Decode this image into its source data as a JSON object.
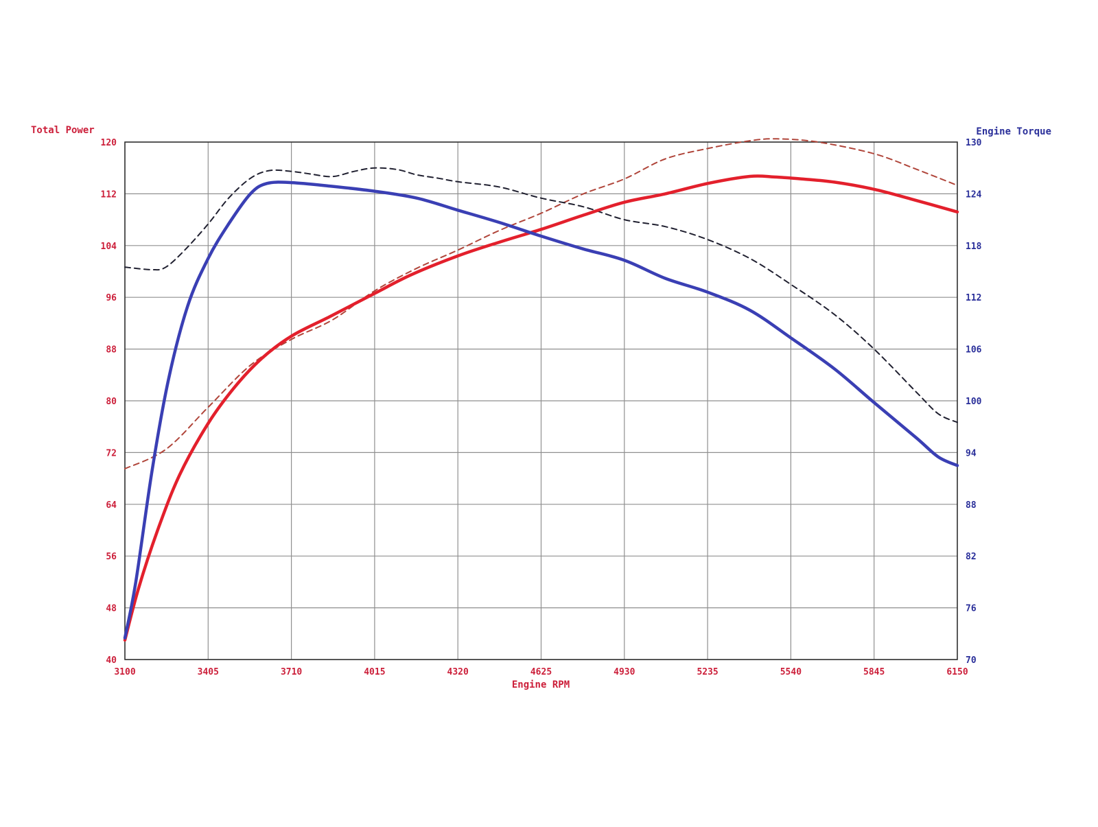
{
  "chart_data": {
    "type": "line",
    "title": "",
    "xlabel": "Engine RPM",
    "ylabel_left": "Total Power",
    "ylabel_right": "Engine Torque",
    "xlim": [
      3100,
      6150
    ],
    "ylim_left": [
      40,
      120
    ],
    "ylim_right": [
      70,
      130
    ],
    "x_ticks": [
      "3100",
      "3405",
      "3710",
      "4015",
      "4320",
      "4625",
      "4930",
      "5235",
      "5540",
      "5845",
      "6150"
    ],
    "y_left_ticks": [
      "40",
      "48",
      "56",
      "64",
      "72",
      "80",
      "88",
      "96",
      "104",
      "112",
      "120"
    ],
    "y_right_ticks": [
      "70",
      "76",
      "82",
      "88",
      "94",
      "100",
      "106",
      "112",
      "118",
      "124",
      "130"
    ],
    "grid": true,
    "legend": "none",
    "colors": {
      "power": "#e3202c",
      "power_dashed": "#b0453a",
      "torque": "#3a3fb4",
      "torque_dashed": "#202030",
      "left_axis": "#cc1f3a",
      "right_axis": "#2a2f9a",
      "x_axis": "#cc1f3a"
    },
    "series": [
      {
        "axis": "left",
        "color": "#e3202c",
        "style": "solid",
        "points": [
          [
            3100,
            43
          ],
          [
            3150,
            51
          ],
          [
            3220,
            60
          ],
          [
            3300,
            68.5
          ],
          [
            3405,
            76.5
          ],
          [
            3500,
            82
          ],
          [
            3600,
            86.5
          ],
          [
            3710,
            90
          ],
          [
            3850,
            93
          ],
          [
            4015,
            96.6
          ],
          [
            4150,
            99.5
          ],
          [
            4320,
            102.4
          ],
          [
            4470,
            104.5
          ],
          [
            4625,
            106.5
          ],
          [
            4780,
            108.7
          ],
          [
            4930,
            110.7
          ],
          [
            5080,
            112
          ],
          [
            5235,
            113.6
          ],
          [
            5390,
            114.7
          ],
          [
            5480,
            114.6
          ],
          [
            5580,
            114.3
          ],
          [
            5700,
            113.8
          ],
          [
            5845,
            112.7
          ],
          [
            5980,
            111.2
          ],
          [
            6150,
            109.2
          ]
        ]
      },
      {
        "axis": "left",
        "color": "#b0453a",
        "style": "dashed",
        "points": [
          [
            3100,
            69.5
          ],
          [
            3250,
            72.5
          ],
          [
            3405,
            79
          ],
          [
            3560,
            85.5
          ],
          [
            3710,
            89.5
          ],
          [
            3860,
            92.5
          ],
          [
            4015,
            97
          ],
          [
            4170,
            100.5
          ],
          [
            4320,
            103.3
          ],
          [
            4470,
            106.3
          ],
          [
            4625,
            109
          ],
          [
            4780,
            112
          ],
          [
            4930,
            114.3
          ],
          [
            5080,
            117.4
          ],
          [
            5235,
            119
          ],
          [
            5390,
            120.2
          ],
          [
            5490,
            120.5
          ],
          [
            5640,
            120
          ],
          [
            5845,
            118.2
          ],
          [
            6000,
            115.8
          ],
          [
            6150,
            113.3
          ]
        ]
      },
      {
        "axis": "right",
        "color": "#3a3fb4",
        "style": "solid",
        "points": [
          [
            3100,
            72.5
          ],
          [
            3140,
            79
          ],
          [
            3200,
            92
          ],
          [
            3260,
            102.5
          ],
          [
            3330,
            111
          ],
          [
            3405,
            116.5
          ],
          [
            3480,
            120.5
          ],
          [
            3560,
            124
          ],
          [
            3620,
            125.2
          ],
          [
            3710,
            125.3
          ],
          [
            3850,
            124.9
          ],
          [
            4015,
            124.3
          ],
          [
            4170,
            123.5
          ],
          [
            4320,
            122.1
          ],
          [
            4470,
            120.7
          ],
          [
            4625,
            119.1
          ],
          [
            4780,
            117.6
          ],
          [
            4930,
            116.3
          ],
          [
            5080,
            114.2
          ],
          [
            5235,
            112.6
          ],
          [
            5390,
            110.5
          ],
          [
            5540,
            107.3
          ],
          [
            5700,
            103.7
          ],
          [
            5845,
            99.8
          ],
          [
            6000,
            95.7
          ],
          [
            6080,
            93.5
          ],
          [
            6150,
            92.5
          ]
        ]
      },
      {
        "axis": "right",
        "color": "#202030",
        "style": "dashed",
        "points": [
          [
            3100,
            115.5
          ],
          [
            3200,
            115.2
          ],
          [
            3250,
            115.5
          ],
          [
            3320,
            117.5
          ],
          [
            3405,
            120.5
          ],
          [
            3480,
            123.5
          ],
          [
            3560,
            125.8
          ],
          [
            3630,
            126.7
          ],
          [
            3710,
            126.6
          ],
          [
            3780,
            126.3
          ],
          [
            3860,
            126
          ],
          [
            3940,
            126.6
          ],
          [
            4015,
            127
          ],
          [
            4100,
            126.8
          ],
          [
            4170,
            126.2
          ],
          [
            4250,
            125.8
          ],
          [
            4320,
            125.4
          ],
          [
            4470,
            124.8
          ],
          [
            4625,
            123.5
          ],
          [
            4780,
            122.5
          ],
          [
            4930,
            121
          ],
          [
            5080,
            120.2
          ],
          [
            5235,
            118.7
          ],
          [
            5390,
            116.5
          ],
          [
            5540,
            113.5
          ],
          [
            5700,
            110
          ],
          [
            5845,
            106
          ],
          [
            6000,
            101
          ],
          [
            6080,
            98.5
          ],
          [
            6150,
            97.5
          ]
        ]
      }
    ]
  }
}
